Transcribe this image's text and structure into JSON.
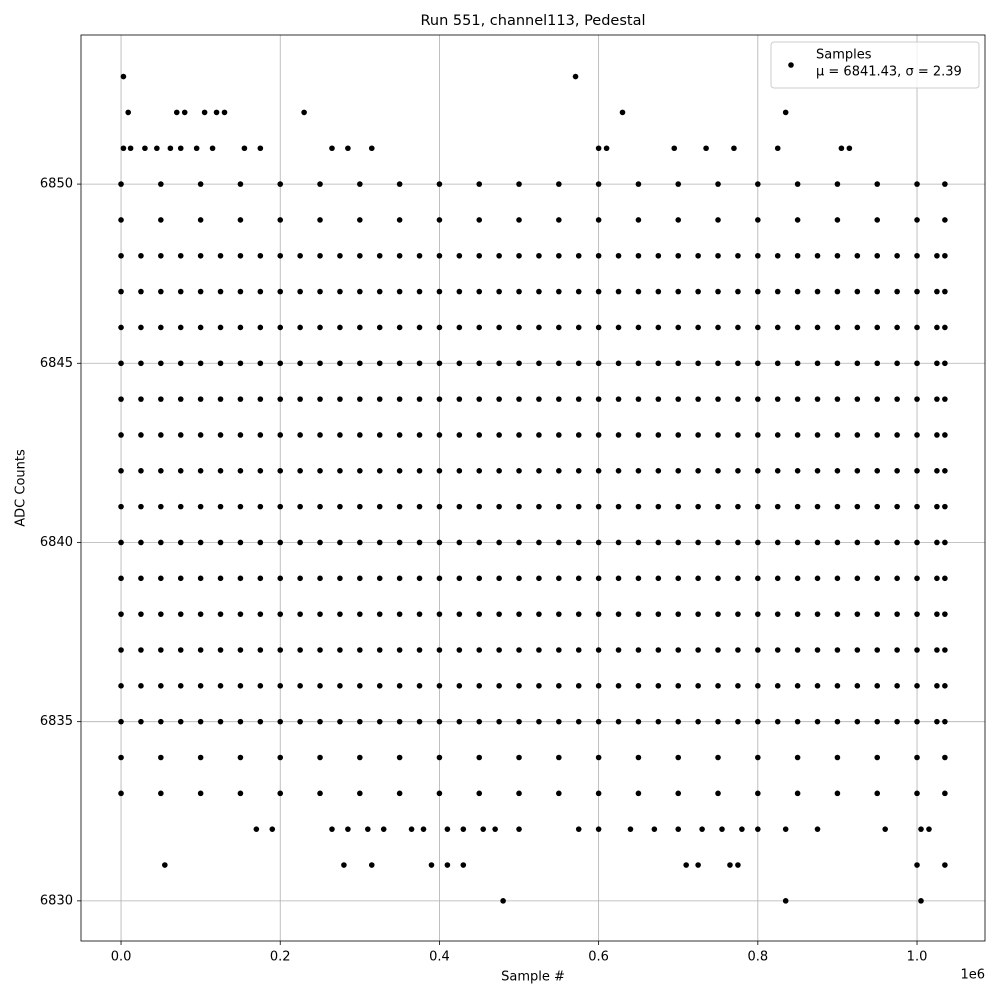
{
  "chart_data": {
    "type": "scatter",
    "title": "Run 551, channel113, Pedestal",
    "xlabel": "Sample #",
    "ylabel": "ADC Counts",
    "x_offset_label": "1e6",
    "xlim": [
      -0.0503,
      1.0854
    ],
    "ylim": [
      6828.88,
      6854.16
    ],
    "xticks": [
      {
        "value": 0,
        "label": "0.0"
      },
      {
        "value": 0.2,
        "label": "0.2"
      },
      {
        "value": 0.4,
        "label": "0.4"
      },
      {
        "value": 0.6,
        "label": "0.6"
      },
      {
        "value": 0.8,
        "label": "0.8"
      },
      {
        "value": 1.0,
        "label": "1.0"
      }
    ],
    "yticks": [
      6830,
      6835,
      6840,
      6845,
      6850
    ],
    "grid": true,
    "legend": "upper right",
    "series": [
      {
        "name": "Samples",
        "stats_label": "μ = 6841.43, σ = 2.39",
        "color": "#000000",
        "groups": [
          {
            "levels": [
              6835,
              6836,
              6837,
              6838,
              6839,
              6840,
              6841,
              6842,
              6843,
              6844,
              6845,
              6846,
              6847,
              6848
            ],
            "x": [
              0,
              0.025,
              0.05,
              0.075,
              0.1,
              0.125,
              0.15,
              0.175,
              0.2,
              0.225,
              0.25,
              0.275,
              0.3,
              0.325,
              0.35,
              0.375,
              0.4,
              0.425,
              0.45,
              0.475,
              0.5,
              0.525,
              0.55,
              0.575,
              0.6,
              0.625,
              0.65,
              0.675,
              0.7,
              0.725,
              0.75,
              0.775,
              0.8,
              0.825,
              0.85,
              0.875,
              0.9,
              0.925,
              0.95,
              0.975,
              1.0,
              1.025,
              1.035
            ]
          },
          {
            "levels": [
              6850,
              6849,
              6834,
              6833
            ],
            "x": [
              0,
              0.05,
              0.1,
              0.15,
              0.2,
              0.25,
              0.3,
              0.35,
              0.4,
              0.45,
              0.5,
              0.55,
              0.6,
              0.65,
              0.7,
              0.75,
              0.8,
              0.85,
              0.9,
              0.95,
              1.0,
              1.035
            ]
          },
          {
            "x": [
              0.003,
              0.571,
              0.009,
              0.07,
              0.08,
              0.105,
              0.12,
              0.13,
              0.23,
              0.63,
              0.835,
              0.003,
              0.012,
              0.03,
              0.045,
              0.062,
              0.075,
              0.095,
              0.115,
              0.155,
              0.175,
              0.265,
              0.285,
              0.315,
              0.6,
              0.61,
              0.695,
              0.735,
              0.77,
              0.825,
              0.905,
              0.915,
              0.17,
              0.19,
              0.265,
              0.285,
              0.31,
              0.33,
              0.365,
              0.38,
              0.41,
              0.43,
              0.455,
              0.47,
              0.5,
              0.575,
              0.6,
              0.64,
              0.67,
              0.7,
              0.73,
              0.755,
              0.78,
              0.8,
              0.835,
              0.875,
              0.96,
              1.005,
              1.015,
              0.055,
              0.28,
              0.315,
              0.39,
              0.41,
              0.43,
              0.71,
              0.725,
              0.765,
              0.775,
              1.0,
              1.035,
              0.48,
              0.835,
              1.005
            ],
            "values": [
              6853,
              6853,
              6852,
              6852,
              6852,
              6852,
              6852,
              6852,
              6852,
              6852,
              6852,
              6851,
              6851,
              6851,
              6851,
              6851,
              6851,
              6851,
              6851,
              6851,
              6851,
              6851,
              6851,
              6851,
              6851,
              6851,
              6851,
              6851,
              6851,
              6851,
              6851,
              6851,
              6832,
              6832,
              6832,
              6832,
              6832,
              6832,
              6832,
              6832,
              6832,
              6832,
              6832,
              6832,
              6832,
              6832,
              6832,
              6832,
              6832,
              6832,
              6832,
              6832,
              6832,
              6832,
              6832,
              6832,
              6832,
              6832,
              6832,
              6831,
              6831,
              6831,
              6831,
              6831,
              6831,
              6831,
              6831,
              6831,
              6831,
              6831,
              6831,
              6830,
              6830,
              6830
            ]
          }
        ]
      }
    ]
  }
}
